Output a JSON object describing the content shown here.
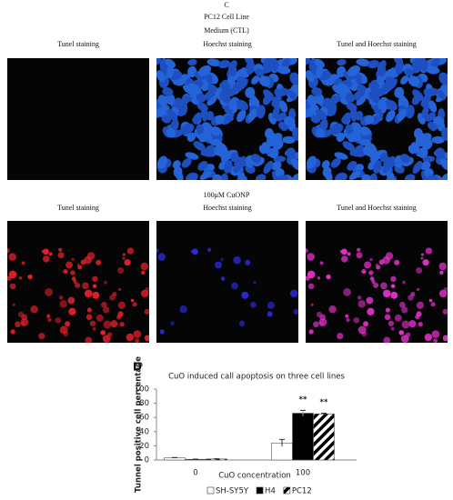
{
  "panel_c": {
    "label": "C",
    "title": "PC12 Cell Line",
    "rows": [
      {
        "condition": "Medium (CTL)",
        "columns": [
          "Tunel staining",
          "Hoechst staining",
          "Tunel and Hoechst staining"
        ]
      },
      {
        "condition": "100μM CuONP",
        "columns": [
          "Tunel staining",
          "Hoechst staining",
          "Tunel and Hoechst staining"
        ]
      }
    ]
  },
  "chart_data": {
    "type": "bar",
    "panel_label": "D",
    "title": "CuO induced call apoptosis on three cell lines",
    "x_label": "CuO concentration",
    "y_label": "Tunnel positive cell percentage",
    "categories": [
      "0",
      "100"
    ],
    "series": [
      {
        "name": "SH-SY5Y",
        "color": "#ffffff",
        "values": [
          3,
          24
        ],
        "errors": [
          0.5,
          5
        ],
        "annotations": [
          null,
          null
        ]
      },
      {
        "name": "H4",
        "color": "#000000",
        "values": [
          1,
          66
        ],
        "errors": [
          0.3,
          4
        ],
        "annotations": [
          null,
          "**"
        ]
      },
      {
        "name": "PC12",
        "color": "#ffffff",
        "pattern": "diagonal",
        "values": [
          1.5,
          65
        ],
        "errors": [
          0.3,
          1
        ],
        "annotations": [
          null,
          "**"
        ]
      }
    ],
    "ylim": [
      0,
      100
    ],
    "yticks": [
      0,
      20,
      40,
      60,
      80,
      100
    ]
  }
}
